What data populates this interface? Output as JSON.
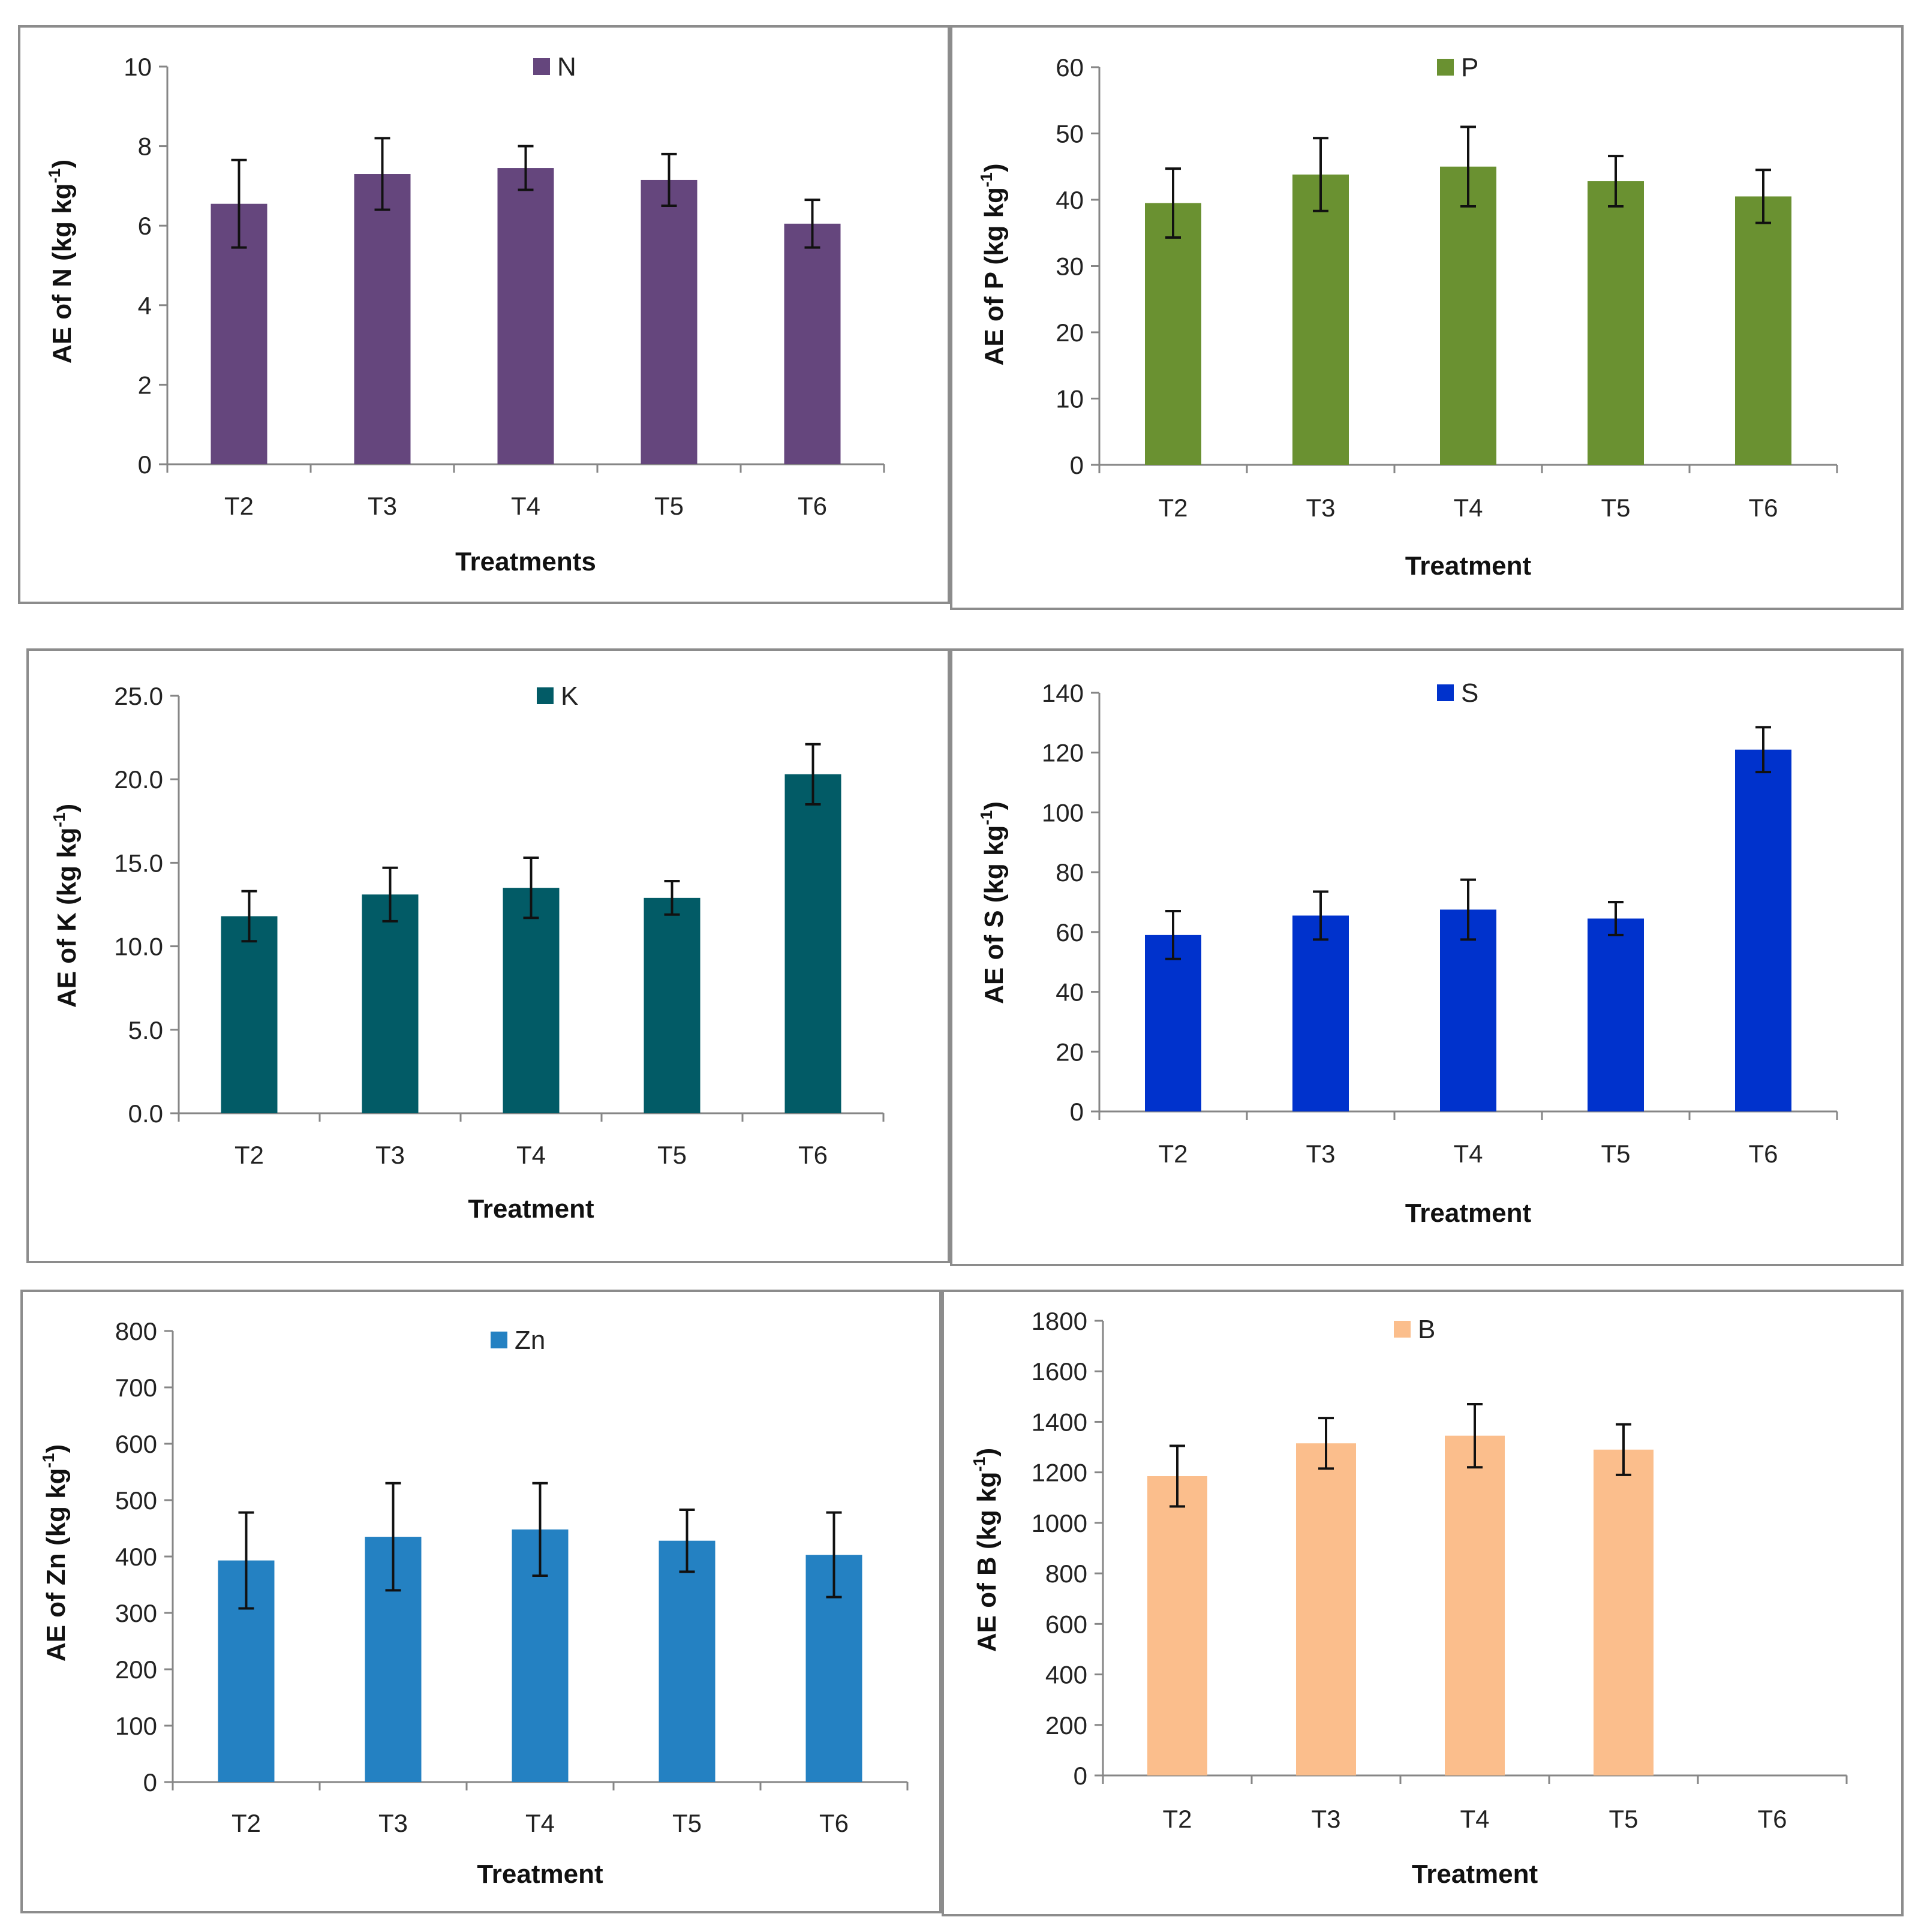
{
  "chart_data": [
    {
      "type": "bar",
      "legend": "N",
      "categories": [
        "T2",
        "T3",
        "T4",
        "T5",
        "T6"
      ],
      "values": [
        6.55,
        7.3,
        7.45,
        7.15,
        6.05
      ],
      "errors": [
        1.1,
        0.9,
        0.55,
        0.65,
        0.6
      ],
      "ylim": [
        0,
        10
      ],
      "yticks": [
        "0",
        "2",
        "4",
        "6",
        "8",
        "10"
      ],
      "ylabel": "AE of N (kg kg",
      "ylabel_sup": "-1",
      "ylabel_end": ")",
      "xlabel": "Treatments",
      "color": "#65467d"
    },
    {
      "type": "bar",
      "legend": "P",
      "categories": [
        "T2",
        "T3",
        "T4",
        "T5",
        "T6"
      ],
      "values": [
        39.5,
        43.8,
        45,
        42.8,
        40.5
      ],
      "errors": [
        5.2,
        5.5,
        6.0,
        3.8,
        4.0
      ],
      "ylim": [
        0,
        60
      ],
      "yticks": [
        "0",
        "10",
        "20",
        "30",
        "40",
        "50",
        "60"
      ],
      "ylabel": "AE of P (kg kg",
      "ylabel_sup": "-1",
      "ylabel_end": ")",
      "xlabel": "Treatment",
      "color": "#6a9131"
    },
    {
      "type": "bar",
      "legend": "K",
      "categories": [
        "T2",
        "T3",
        "T4",
        "T5",
        "T6"
      ],
      "values": [
        11.8,
        13.1,
        13.5,
        12.9,
        20.3
      ],
      "errors": [
        1.5,
        1.6,
        1.8,
        1.0,
        1.8
      ],
      "ylim": [
        0,
        25
      ],
      "yticks": [
        "0.0",
        "5.0",
        "10.0",
        "15.0",
        "20.0",
        "25.0"
      ],
      "ylabel": "AE of K (kg kg",
      "ylabel_sup": "-1",
      "ylabel_end": ")",
      "xlabel": "Treatment",
      "color": "#025b66"
    },
    {
      "type": "bar",
      "legend": "S",
      "categories": [
        "T2",
        "T3",
        "T4",
        "T5",
        "T6"
      ],
      "values": [
        59,
        65.5,
        67.5,
        64.5,
        121
      ],
      "errors": [
        8,
        8,
        10,
        5.5,
        7.5
      ],
      "ylim": [
        0,
        140
      ],
      "yticks": [
        "0",
        "20",
        "40",
        "60",
        "80",
        "100",
        "120",
        "140"
      ],
      "ylabel": "AE of S (kg kg",
      "ylabel_sup": "-1",
      "ylabel_end": ")",
      "xlabel": "Treatment",
      "color": "#0032cc"
    },
    {
      "type": "bar",
      "legend": "Zn",
      "categories": [
        "T2",
        "T3",
        "T4",
        "T5",
        "T6"
      ],
      "values": [
        393,
        435,
        448,
        428,
        403
      ],
      "errors": [
        85,
        95,
        82,
        55,
        75
      ],
      "ylim": [
        0,
        800
      ],
      "yticks": [
        "0",
        "100",
        "200",
        "300",
        "400",
        "500",
        "600",
        "700",
        "800"
      ],
      "ylabel": "AE of Zn (kg kg",
      "ylabel_sup": "-1",
      "ylabel_end": ")",
      "xlabel": "Treatment",
      "color": "#2481c2"
    },
    {
      "type": "bar",
      "legend": "B",
      "categories": [
        "T2",
        "T3",
        "T4",
        "T5",
        "T6"
      ],
      "values": [
        1185,
        1315,
        1345,
        1290,
        null
      ],
      "errors": [
        120,
        100,
        125,
        100,
        null
      ],
      "ylim": [
        0,
        1800
      ],
      "yticks": [
        "0",
        "200",
        "400",
        "600",
        "800",
        "1000",
        "1200",
        "1400",
        "1600",
        "1800"
      ],
      "ylabel": "AE of B (kg kg",
      "ylabel_sup": "-1",
      "ylabel_end": ")",
      "xlabel": "Treatment",
      "color": "#fbbe8c"
    }
  ]
}
